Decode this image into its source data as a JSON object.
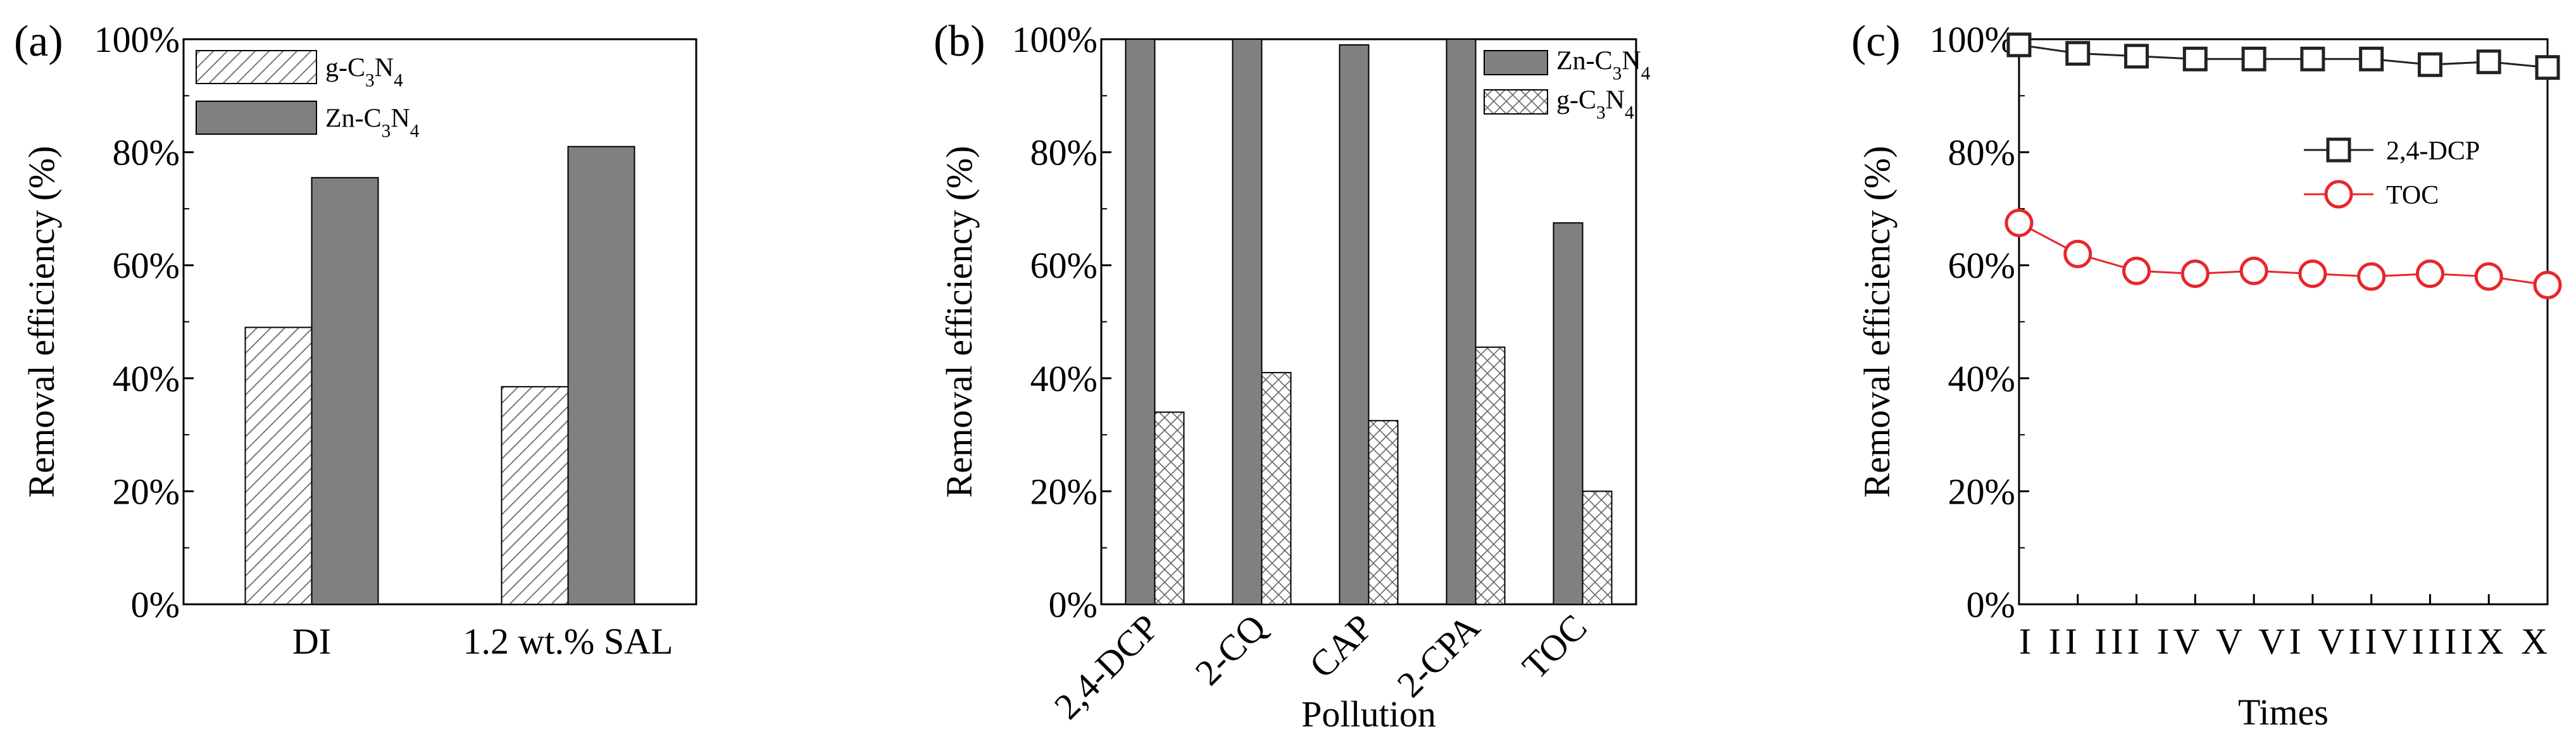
{
  "chart_data": [
    {
      "panel_label": "(a)",
      "type": "bar",
      "categories": [
        "DI",
        "1.2 wt.% SAL"
      ],
      "series": [
        {
          "name": "g-C3N4",
          "values": [
            49,
            38.5
          ],
          "pattern": "diagonal-hatch"
        },
        {
          "name": "Zn-C3N4",
          "values": [
            75.5,
            81
          ],
          "color": "#808080"
        }
      ],
      "xlabel": "",
      "ylabel": "Removal efficiency (%)",
      "ylim": [
        0,
        100
      ],
      "yticks": [
        "0%",
        "20%",
        "40%",
        "60%",
        "80%",
        "100%"
      ],
      "legend_position": "top-left",
      "grid": false
    },
    {
      "panel_label": "(b)",
      "type": "bar",
      "categories": [
        "2,4-DCP",
        "2-CQ",
        "CAP",
        "2-CPA",
        "TOC"
      ],
      "series": [
        {
          "name": "Zn-C3N4",
          "values": [
            100,
            100,
            99,
            100,
            67.5
          ],
          "color": "#808080"
        },
        {
          "name": "g-C3N4",
          "values": [
            34,
            41,
            32.5,
            45.5,
            20
          ],
          "pattern": "cross-hatch"
        }
      ],
      "xlabel": "Pollution",
      "ylabel": "Removal efficiency (%)",
      "ylim": [
        0,
        100
      ],
      "yticks": [
        "0%",
        "20%",
        "40%",
        "60%",
        "80%",
        "100%"
      ],
      "legend_position": "top-right",
      "grid": false
    },
    {
      "panel_label": "(c)",
      "type": "line",
      "x": [
        "I",
        "II",
        "III",
        "IV",
        "V",
        "VI",
        "VII",
        "VIII",
        "IX",
        "X"
      ],
      "xtick_text": "I II III IV V VI VIIVIIIIX X",
      "series": [
        {
          "name": "2,4-DCP",
          "values": [
            99,
            97.5,
            97,
            96.5,
            96.5,
            96.5,
            96.5,
            95.5,
            96,
            95
          ],
          "color": "#222222",
          "marker": "square"
        },
        {
          "name": "TOC",
          "values": [
            67.5,
            62,
            59,
            58.5,
            59,
            58.5,
            58,
            58.5,
            58,
            56.5
          ],
          "color": "#e8262b",
          "marker": "circle"
        }
      ],
      "xlabel": "Times",
      "ylabel": "Removal efficiency (%)",
      "ylim": [
        0,
        100
      ],
      "yticks": [
        "0%",
        "20%",
        "40%",
        "60%",
        "80%",
        "100%"
      ],
      "legend_position": "upper-right",
      "grid": false
    }
  ]
}
